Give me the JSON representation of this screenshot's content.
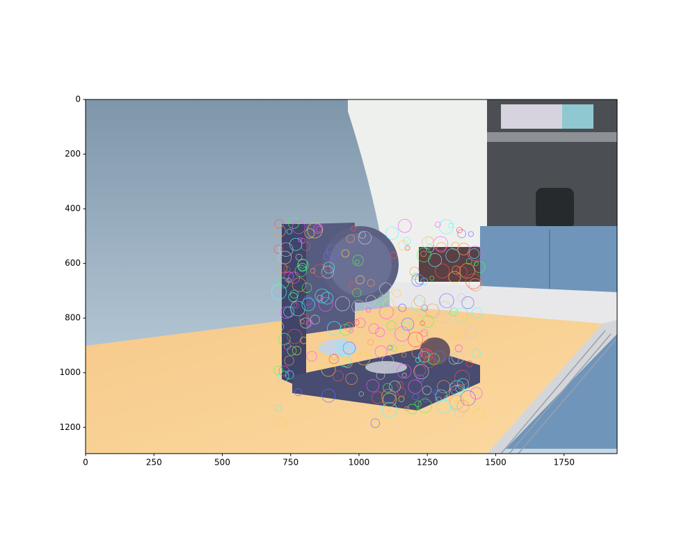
{
  "chart_data": {
    "type": "image",
    "xlim": [
      0,
      1944
    ],
    "ylim": [
      1296,
      0
    ],
    "xticks": [
      0,
      250,
      500,
      750,
      1000,
      1250,
      1500,
      1750
    ],
    "yticks": [
      0,
      200,
      400,
      600,
      800,
      1000,
      1200
    ]
  }
}
